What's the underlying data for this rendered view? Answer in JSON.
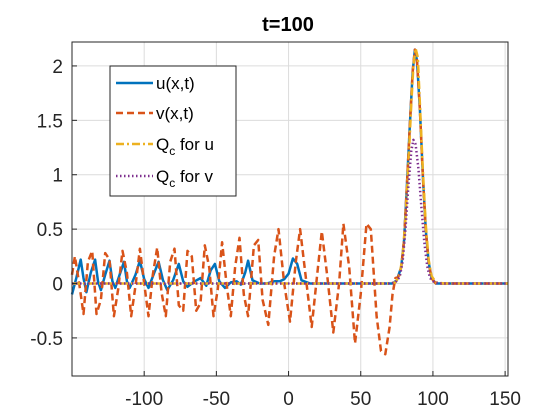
{
  "chart_data": {
    "type": "line",
    "title": "t=100",
    "xlabel": "",
    "ylabel": "",
    "xlim": [
      -150,
      152
    ],
    "ylim": [
      -0.85,
      2.22
    ],
    "grid": true,
    "legend_position": "top-left",
    "x_ticks": [
      -100,
      -50,
      0,
      50,
      100,
      150
    ],
    "y_ticks": [
      -0.5,
      0,
      0.5,
      1,
      1.5,
      2
    ],
    "y_tick_labels": [
      "-0.5",
      "0",
      "0.5",
      "1",
      "1.5",
      "2"
    ],
    "series": [
      {
        "name": "u(x,t)",
        "color": "#0072BD",
        "style": "solid",
        "points": [
          [
            -150,
            -0.1
          ],
          [
            -147,
            0.05
          ],
          [
            -144,
            0.22
          ],
          [
            -142,
            0.05
          ],
          [
            -140,
            -0.08
          ],
          [
            -137,
            0.1
          ],
          [
            -134,
            0.22
          ],
          [
            -132,
            0.02
          ],
          [
            -130,
            -0.06
          ],
          [
            -127,
            0.08
          ],
          [
            -124,
            0.21
          ],
          [
            -122,
            0.02
          ],
          [
            -120,
            -0.04
          ],
          [
            -117,
            0.08
          ],
          [
            -114,
            0.2
          ],
          [
            -112,
            0.02
          ],
          [
            -110,
            -0.04
          ],
          [
            -106,
            0.08
          ],
          [
            -103,
            0.21
          ],
          [
            -100,
            0.04
          ],
          [
            -97,
            -0.04
          ],
          [
            -93,
            0.1
          ],
          [
            -90,
            0.2
          ],
          [
            -87,
            0.03
          ],
          [
            -84,
            -0.06
          ],
          [
            -80,
            0.03
          ],
          [
            -76,
            0.18
          ],
          [
            -73,
            0.02
          ],
          [
            -70,
            -0.03
          ],
          [
            -65,
            0.02
          ],
          [
            -61,
            0.05
          ],
          [
            -57,
            -0.02
          ],
          [
            -54,
            0.12
          ],
          [
            -51,
            0.18
          ],
          [
            -48,
            0.02
          ],
          [
            -44,
            -0.04
          ],
          [
            -40,
            0.01
          ],
          [
            -36,
            0.02
          ],
          [
            -33,
            -0.01
          ],
          [
            -30,
            0.1
          ],
          [
            -28,
            0.21
          ],
          [
            -25,
            0.03
          ],
          [
            -20,
            0.0
          ],
          [
            -15,
            0.0
          ],
          [
            -10,
            0.02
          ],
          [
            -6,
            0.02
          ],
          [
            -3,
            0.04
          ],
          [
            0,
            0.09
          ],
          [
            3,
            0.23
          ],
          [
            6,
            0.18
          ],
          [
            9,
            0.03
          ],
          [
            15,
            0.0
          ],
          [
            30,
            0.0
          ],
          [
            50,
            0.0
          ],
          [
            65,
            0.0
          ],
          [
            72,
            0.0
          ],
          [
            75,
            0.03
          ],
          [
            78,
            0.15
          ],
          [
            80,
            0.4
          ],
          [
            82,
            0.9
          ],
          [
            84,
            1.45
          ],
          [
            86,
            1.95
          ],
          [
            87.5,
            2.15
          ],
          [
            89,
            2.05
          ],
          [
            91,
            1.6
          ],
          [
            93,
            1.0
          ],
          [
            95,
            0.5
          ],
          [
            97,
            0.2
          ],
          [
            99,
            0.05
          ],
          [
            102,
            0.0
          ],
          [
            110,
            0.0
          ],
          [
            130,
            0.0
          ],
          [
            152,
            0.0
          ]
        ]
      },
      {
        "name": "v(x,t)",
        "color": "#D95319",
        "style": "dashed",
        "points": [
          [
            -150,
            0.08
          ],
          [
            -148,
            0.25
          ],
          [
            -145,
            0.0
          ],
          [
            -142,
            -0.28
          ],
          [
            -139,
            0.2
          ],
          [
            -136,
            0.3
          ],
          [
            -133,
            -0.28
          ],
          [
            -130,
            -0.15
          ],
          [
            -127,
            0.28
          ],
          [
            -124,
            0.22
          ],
          [
            -121,
            -0.3
          ],
          [
            -118,
            -0.05
          ],
          [
            -115,
            0.3
          ],
          [
            -112,
            0.1
          ],
          [
            -109,
            -0.3
          ],
          [
            -106,
            -0.02
          ],
          [
            -103,
            0.32
          ],
          [
            -100,
            0.0
          ],
          [
            -97,
            -0.3
          ],
          [
            -94,
            0.08
          ],
          [
            -91,
            0.33
          ],
          [
            -88,
            -0.08
          ],
          [
            -85,
            -0.3
          ],
          [
            -82,
            0.2
          ],
          [
            -79,
            0.32
          ],
          [
            -76,
            -0.2
          ],
          [
            -73,
            -0.25
          ],
          [
            -70,
            0.3
          ],
          [
            -67,
            0.25
          ],
          [
            -64,
            -0.25
          ],
          [
            -61,
            -0.18
          ],
          [
            -58,
            0.35
          ],
          [
            -55,
            0.15
          ],
          [
            -52,
            -0.3
          ],
          [
            -49,
            -0.05
          ],
          [
            -46,
            0.38
          ],
          [
            -43,
            0.0
          ],
          [
            -40,
            -0.3
          ],
          [
            -37,
            0.15
          ],
          [
            -34,
            0.42
          ],
          [
            -31,
            -0.1
          ],
          [
            -28,
            -0.3
          ],
          [
            -24,
            0.35
          ],
          [
            -21,
            0.4
          ],
          [
            -18,
            -0.15
          ],
          [
            -14,
            -0.38
          ],
          [
            -10,
            0.25
          ],
          [
            -7,
            0.5
          ],
          [
            -3,
            0.0
          ],
          [
            1,
            -0.35
          ],
          [
            5,
            0.2
          ],
          [
            8,
            0.5
          ],
          [
            12,
            0.05
          ],
          [
            16,
            -0.4
          ],
          [
            20,
            0.1
          ],
          [
            23,
            0.48
          ],
          [
            27,
            0.05
          ],
          [
            31,
            -0.45
          ],
          [
            35,
            0.0
          ],
          [
            38,
            0.55
          ],
          [
            42,
            0.15
          ],
          [
            46,
            -0.55
          ],
          [
            50,
            -0.1
          ],
          [
            54,
            0.55
          ],
          [
            57,
            0.5
          ],
          [
            61,
            -0.3
          ],
          [
            64,
            -0.62
          ],
          [
            67,
            -0.65
          ],
          [
            70,
            -0.4
          ],
          [
            72,
            -0.1
          ],
          [
            74,
            0.05
          ],
          [
            76,
            0.06
          ],
          [
            78,
            0.15
          ],
          [
            80,
            0.4
          ],
          [
            82,
            0.9
          ],
          [
            84,
            1.45
          ],
          [
            86,
            1.95
          ],
          [
            87.5,
            2.15
          ],
          [
            89,
            2.05
          ],
          [
            91,
            1.6
          ],
          [
            93,
            1.0
          ],
          [
            95,
            0.5
          ],
          [
            97,
            0.2
          ],
          [
            99,
            0.05
          ],
          [
            102,
            0.0
          ],
          [
            120,
            0.0
          ],
          [
            152,
            0.0
          ]
        ]
      },
      {
        "name": "Q_c for u",
        "color": "#EDB120",
        "style": "dashdot",
        "points": [
          [
            -150,
            0.0
          ],
          [
            70,
            0.0
          ],
          [
            74,
            0.01
          ],
          [
            77,
            0.08
          ],
          [
            79,
            0.25
          ],
          [
            81,
            0.6
          ],
          [
            83,
            1.1
          ],
          [
            85,
            1.65
          ],
          [
            86.5,
            2.0
          ],
          [
            88,
            2.16
          ],
          [
            89.5,
            2.08
          ],
          [
            91,
            1.65
          ],
          [
            93,
            1.05
          ],
          [
            95,
            0.55
          ],
          [
            97,
            0.22
          ],
          [
            99,
            0.07
          ],
          [
            102,
            0.01
          ],
          [
            108,
            0.0
          ],
          [
            152,
            0.0
          ]
        ]
      },
      {
        "name": "Q_c for v",
        "color": "#7E2F8E",
        "style": "dotted",
        "points": [
          [
            -150,
            0.0
          ],
          [
            70,
            0.0
          ],
          [
            74,
            0.01
          ],
          [
            77,
            0.06
          ],
          [
            79,
            0.2
          ],
          [
            81,
            0.5
          ],
          [
            83,
            0.9
          ],
          [
            85,
            1.22
          ],
          [
            86.5,
            1.32
          ],
          [
            88,
            1.28
          ],
          [
            90,
            1.05
          ],
          [
            92,
            0.7
          ],
          [
            94,
            0.38
          ],
          [
            96,
            0.16
          ],
          [
            98,
            0.05
          ],
          [
            101,
            0.01
          ],
          [
            106,
            0.0
          ],
          [
            152,
            0.0
          ]
        ]
      }
    ]
  }
}
